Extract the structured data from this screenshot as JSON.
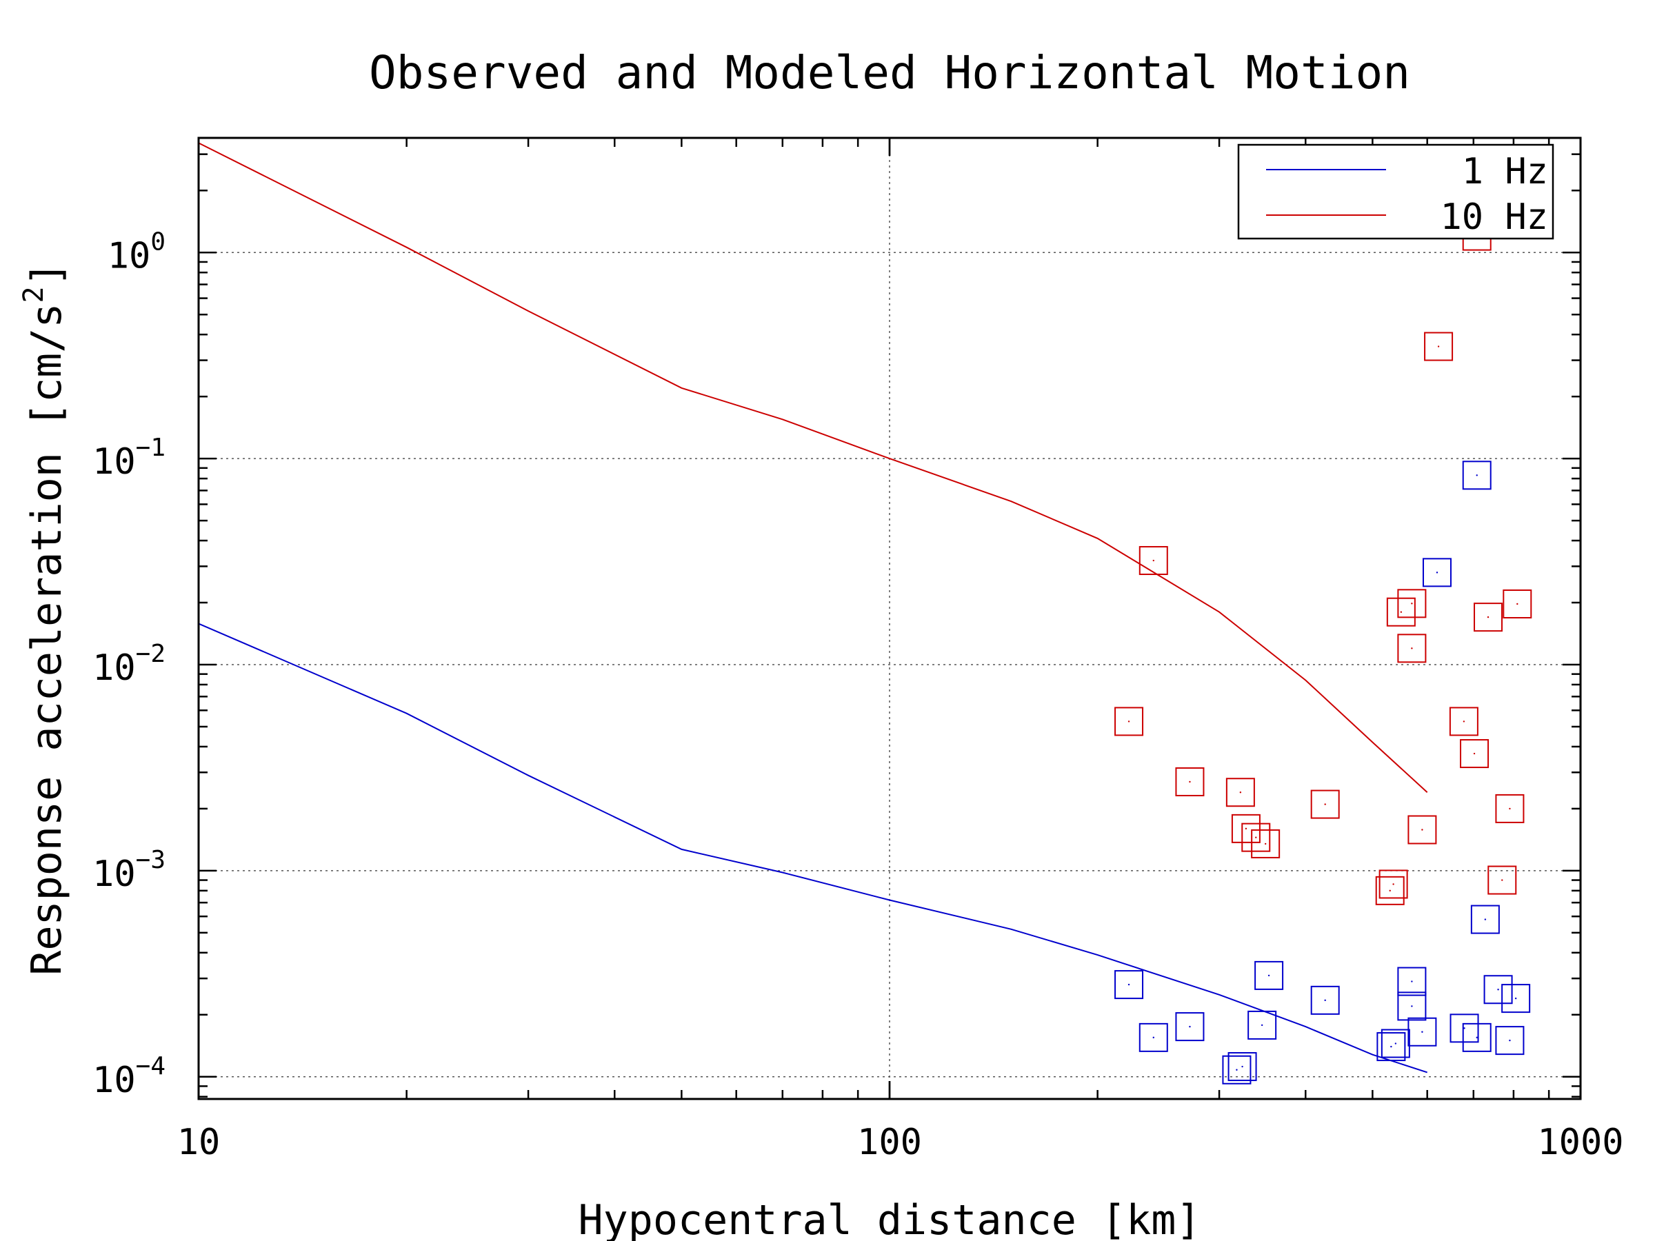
{
  "chart_data": {
    "type": "scatter",
    "title": "Observed and Modeled Horizontal Motion",
    "xlabel": "Hypocentral distance [km]",
    "ylabel": "Response acceleration [cm/s",
    "ylabel_sup": "2",
    "ylabel_end": "]",
    "xscale": "log",
    "yscale": "log",
    "xlim": [
      10,
      1000
    ],
    "ylim": [
      7.8e-05,
      3.6
    ],
    "x_ticks": [
      {
        "value": 10,
        "label": "10"
      },
      {
        "value": 100,
        "label": "100"
      },
      {
        "value": 1000,
        "label": "1000"
      }
    ],
    "y_ticks": [
      {
        "value": 0.0001,
        "base": "10",
        "exp": "−4"
      },
      {
        "value": 0.001,
        "base": "10",
        "exp": "−3"
      },
      {
        "value": 0.01,
        "base": "10",
        "exp": "−2"
      },
      {
        "value": 0.1,
        "base": "10",
        "exp": "−1"
      },
      {
        "value": 1,
        "base": "10",
        "exp": "0"
      }
    ],
    "grid": true,
    "legend_position": "top-right",
    "series": [
      {
        "name": "1 Hz",
        "color": "#0000cc",
        "model": {
          "x": [
            10,
            20,
            30,
            50,
            70,
            100,
            150,
            200,
            300,
            400,
            500,
            600
          ],
          "y": [
            0.0158,
            0.0058,
            0.0029,
            0.00127,
            0.00098,
            0.00072,
            0.00052,
            0.00039,
            0.00025,
            0.000175,
            0.000128,
            0.000105
          ]
        },
        "observed": [
          {
            "x": 222,
            "y": 0.00028
          },
          {
            "x": 241,
            "y": 0.000155
          },
          {
            "x": 272,
            "y": 0.000175
          },
          {
            "x": 318,
            "y": 0.000108
          },
          {
            "x": 324,
            "y": 0.000112
          },
          {
            "x": 346,
            "y": 0.000178
          },
          {
            "x": 354,
            "y": 0.00031
          },
          {
            "x": 427,
            "y": 0.000235
          },
          {
            "x": 532,
            "y": 0.00014
          },
          {
            "x": 540,
            "y": 0.000145
          },
          {
            "x": 570,
            "y": 0.00029
          },
          {
            "x": 570,
            "y": 0.00022
          },
          {
            "x": 590,
            "y": 0.000165
          },
          {
            "x": 620,
            "y": 0.028
          },
          {
            "x": 679,
            "y": 0.000172
          },
          {
            "x": 708,
            "y": 0.000155
          },
          {
            "x": 708,
            "y": 0.083
          },
          {
            "x": 728,
            "y": 0.00058
          },
          {
            "x": 760,
            "y": 0.000265
          },
          {
            "x": 790,
            "y": 0.00015
          },
          {
            "x": 806,
            "y": 0.00024
          }
        ]
      },
      {
        "name": "10 Hz",
        "color": "#cc0000",
        "model": {
          "x": [
            10,
            20,
            30,
            50,
            70,
            100,
            150,
            200,
            300,
            400,
            500,
            600
          ],
          "y": [
            3.4,
            1.06,
            0.52,
            0.22,
            0.155,
            0.1,
            0.062,
            0.041,
            0.018,
            0.0084,
            0.0042,
            0.0024
          ]
        },
        "observed": [
          {
            "x": 222,
            "y": 0.0053
          },
          {
            "x": 241,
            "y": 0.032
          },
          {
            "x": 272,
            "y": 0.0027
          },
          {
            "x": 322,
            "y": 0.0024
          },
          {
            "x": 328,
            "y": 0.0016
          },
          {
            "x": 339,
            "y": 0.00145
          },
          {
            "x": 350,
            "y": 0.00135
          },
          {
            "x": 427,
            "y": 0.0021
          },
          {
            "x": 530,
            "y": 0.0008
          },
          {
            "x": 536,
            "y": 0.00086
          },
          {
            "x": 550,
            "y": 0.018
          },
          {
            "x": 570,
            "y": 0.0198
          },
          {
            "x": 570,
            "y": 0.012
          },
          {
            "x": 590,
            "y": 0.00158
          },
          {
            "x": 623,
            "y": 0.35
          },
          {
            "x": 678,
            "y": 0.0053
          },
          {
            "x": 702,
            "y": 0.0037
          },
          {
            "x": 708,
            "y": 1.2
          },
          {
            "x": 735,
            "y": 0.017
          },
          {
            "x": 770,
            "y": 0.0009
          },
          {
            "x": 790,
            "y": 0.002
          },
          {
            "x": 810,
            "y": 0.0197
          }
        ]
      }
    ]
  }
}
